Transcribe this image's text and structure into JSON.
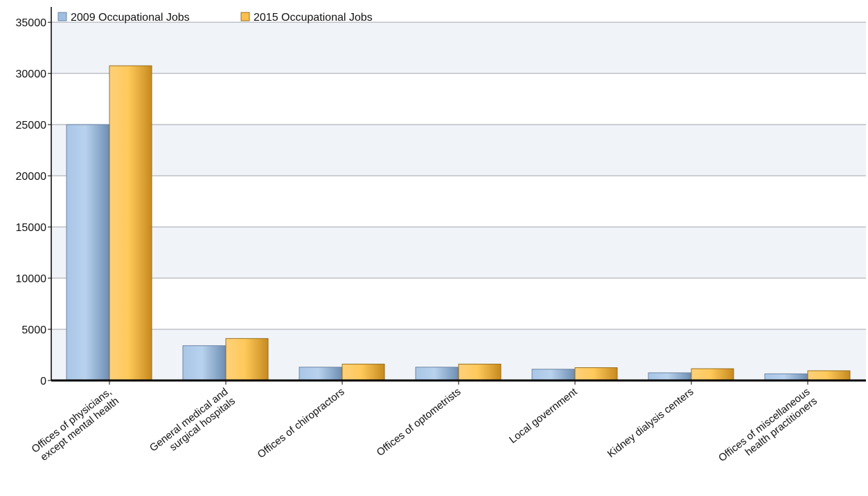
{
  "chart_data": {
    "type": "bar",
    "title": "",
    "xlabel": "",
    "ylabel": "",
    "ylim": [
      0,
      36500
    ],
    "yticks": [
      0,
      5000,
      10000,
      15000,
      20000,
      25000,
      30000,
      35000
    ],
    "grid": true,
    "legend_position": "top-left",
    "categories": [
      [
        "Offices of physicians,",
        "except mental health"
      ],
      [
        "General medical and",
        "surgical hospitals"
      ],
      [
        "Offices of chiropractors"
      ],
      [
        "Offices of optometrists"
      ],
      [
        "Local government"
      ],
      [
        "Kidney dialysis centers"
      ],
      [
        "Offices of miscellaneous",
        "health practitioners"
      ]
    ],
    "series": [
      {
        "name": "2009 Occupational Jobs",
        "color": "#9fbfe0",
        "values": [
          25000,
          3400,
          1300,
          1300,
          1100,
          750,
          650
        ]
      },
      {
        "name": "2015 Occupational Jobs",
        "color": "#fbbf4e",
        "values": [
          30750,
          4100,
          1600,
          1600,
          1250,
          1150,
          950
        ]
      }
    ]
  }
}
